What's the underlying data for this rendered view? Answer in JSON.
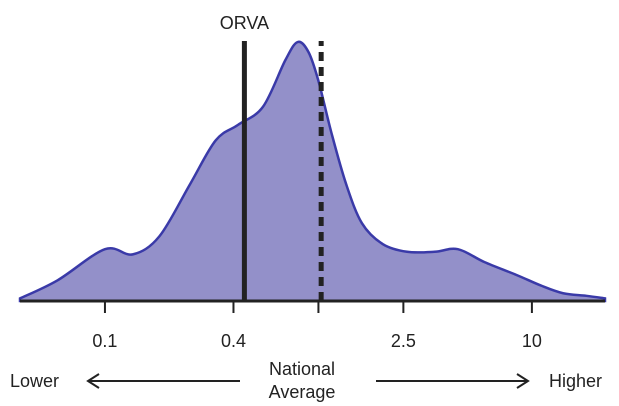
{
  "chart_data": {
    "type": "area",
    "x_scale": "log",
    "xlim": [
      0.04,
      22
    ],
    "ylim": [
      0,
      1
    ],
    "x_ticks": [
      {
        "value": 0.1,
        "label": "0.1"
      },
      {
        "value": 0.4,
        "label": "0.4"
      },
      {
        "value": 1.0,
        "label": ""
      },
      {
        "value": 2.5,
        "label": "2.5"
      },
      {
        "value": 10,
        "label": "10"
      }
    ],
    "series": [
      {
        "points": [
          [
            0.04,
            0.01
          ],
          [
            0.06,
            0.08
          ],
          [
            0.1,
            0.2
          ],
          [
            0.135,
            0.18
          ],
          [
            0.18,
            0.25
          ],
          [
            0.25,
            0.45
          ],
          [
            0.33,
            0.62
          ],
          [
            0.42,
            0.68
          ],
          [
            0.55,
            0.75
          ],
          [
            0.7,
            0.93
          ],
          [
            0.8,
            1.0
          ],
          [
            0.9,
            0.96
          ],
          [
            1.0,
            0.85
          ],
          [
            1.15,
            0.65
          ],
          [
            1.35,
            0.45
          ],
          [
            1.6,
            0.3
          ],
          [
            2.0,
            0.22
          ],
          [
            2.6,
            0.19
          ],
          [
            3.5,
            0.19
          ],
          [
            4.5,
            0.2
          ],
          [
            6.0,
            0.15
          ],
          [
            8.5,
            0.1
          ],
          [
            11,
            0.06
          ],
          [
            14,
            0.03
          ],
          [
            18,
            0.02
          ],
          [
            22,
            0.01
          ]
        ]
      }
    ],
    "reference_lines": [
      {
        "label": "ORVA",
        "x": 0.45,
        "style": "solid"
      },
      {
        "label": "",
        "x": 1.03,
        "style": "dashed"
      }
    ],
    "annotations": {
      "left": "Lower",
      "right": "Higher",
      "center_line1": "National",
      "center_line2": "Average"
    },
    "colors": {
      "fill": "#9390c9",
      "stroke": "#3a3aa8",
      "line": "#222222"
    }
  }
}
